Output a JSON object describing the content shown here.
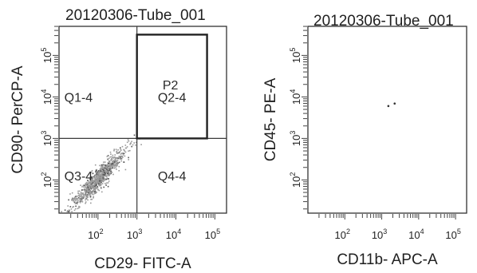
{
  "chart_data": [
    {
      "type": "scatter",
      "title": "20120306-Tube_001",
      "xlabel": "CD29- FITC-A",
      "ylabel": "CD90- PerCP-A",
      "scale": "log",
      "xlim_log10": [
        1.0,
        5.3
      ],
      "ylim_log10": [
        1.2,
        5.7
      ],
      "x_ticks": [
        {
          "base": "10",
          "exp": "2",
          "log": 2
        },
        {
          "base": "10",
          "exp": "3",
          "log": 3
        },
        {
          "base": "10",
          "exp": "4",
          "log": 4
        },
        {
          "base": "10",
          "exp": "5",
          "log": 5
        }
      ],
      "y_ticks": [
        {
          "base": "10",
          "exp": "2",
          "log": 2
        },
        {
          "base": "10",
          "exp": "3",
          "log": 3
        },
        {
          "base": "10",
          "exp": "4",
          "log": 4
        },
        {
          "base": "10",
          "exp": "5",
          "log": 5
        }
      ],
      "quadrant_split_log10": {
        "x": 3.0,
        "y": 3.0
      },
      "quadrants": [
        {
          "label": "Q1-4",
          "x": 1.5,
          "y": 4.0
        },
        {
          "label": "Q2-4",
          "x": 3.9,
          "y": 4.0
        },
        {
          "label": "Q3-4",
          "x": 1.5,
          "y": 2.1
        },
        {
          "label": "Q4-4",
          "x": 3.9,
          "y": 2.1
        }
      ],
      "gate": {
        "label": "P2",
        "x_log10": [
          3.0,
          4.8
        ],
        "y_log10": [
          3.0,
          5.5
        ]
      },
      "population": {
        "description_center_log10": [
          2.0,
          2.05
        ],
        "slope": 1.0
      }
    },
    {
      "type": "scatter",
      "title": "20120306-Tube_001",
      "xlabel": "CD11b- APC-A",
      "ylabel": "CD45- PE-A",
      "scale": "log",
      "xlim_log10": [
        1.0,
        5.3
      ],
      "ylim_log10": [
        1.2,
        5.7
      ],
      "x_ticks": [
        {
          "base": "10",
          "exp": "2",
          "log": 2
        },
        {
          "base": "10",
          "exp": "3",
          "log": 3
        },
        {
          "base": "10",
          "exp": "4",
          "log": 4
        },
        {
          "base": "10",
          "exp": "5",
          "log": 5
        }
      ],
      "y_ticks": [
        {
          "base": "10",
          "exp": "2",
          "log": 2
        },
        {
          "base": "10",
          "exp": "3",
          "log": 3
        },
        {
          "base": "10",
          "exp": "4",
          "log": 4
        },
        {
          "base": "10",
          "exp": "5",
          "log": 5
        }
      ],
      "points_log10": [
        [
          3.18,
          3.78
        ],
        [
          3.35,
          3.84
        ]
      ]
    }
  ]
}
